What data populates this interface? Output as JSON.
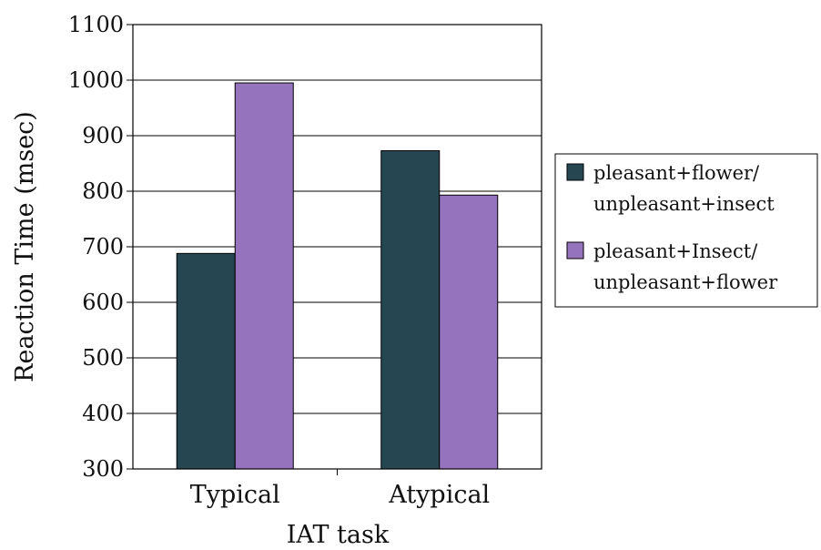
{
  "chart_data": {
    "type": "bar",
    "categories": [
      "Typical",
      "Atypical"
    ],
    "series": [
      {
        "name": "pleasant+flower/\nunpleasant+insect",
        "values": [
          688,
          873
        ],
        "color": "#264652"
      },
      {
        "name": "pleasant+Insect/\nunpleasant+flower",
        "values": [
          995,
          793
        ],
        "color": "#9673bd"
      }
    ],
    "xlabel": "IAT task",
    "ylabel": "Reaction Time (msec)",
    "ylim": [
      300,
      1100
    ],
    "yticks": [
      300,
      400,
      500,
      600,
      700,
      800,
      900,
      1000,
      1100
    ],
    "grid": true,
    "legend_position": "right"
  }
}
